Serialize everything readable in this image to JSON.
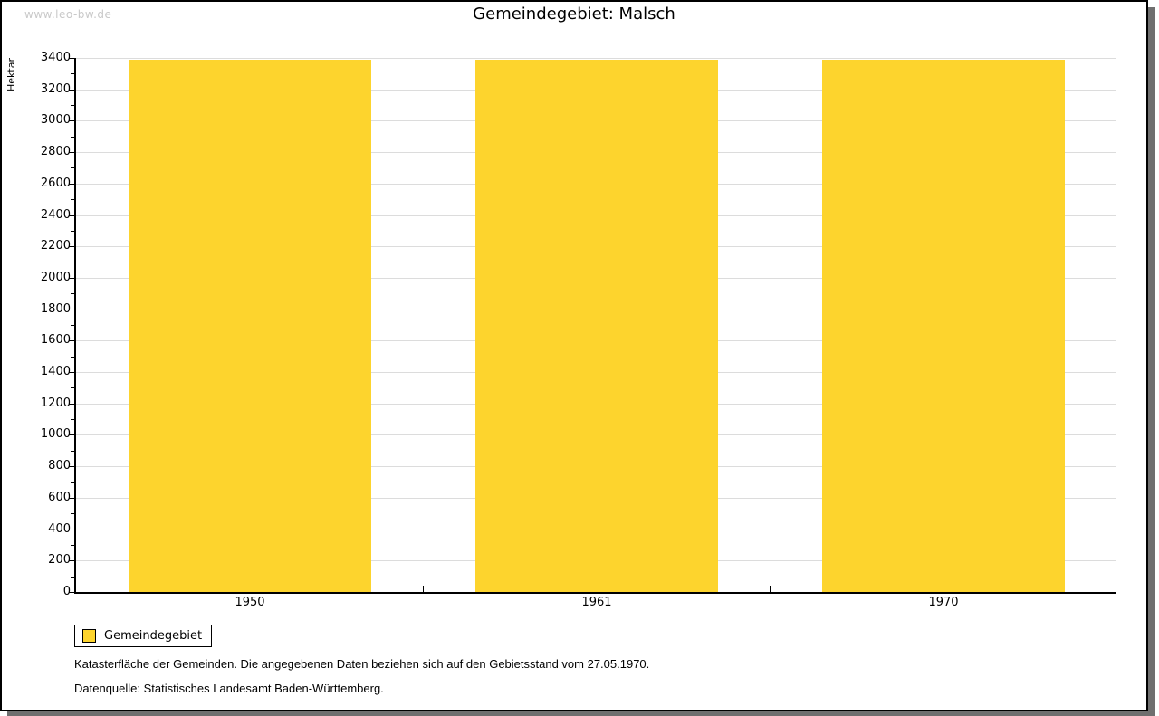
{
  "watermark": "www.leo-bw.de",
  "title": "Gemeindegebiet: Malsch",
  "chart_data": {
    "type": "bar",
    "title": "Gemeindegebiet: Malsch",
    "categories": [
      "1950",
      "1961",
      "1970"
    ],
    "series": [
      {
        "name": "Gemeindegebiet",
        "values": [
          3388,
          3388,
          3388
        ]
      }
    ],
    "xlabel": "",
    "ylabel": "Hektar",
    "ylim": [
      0,
      3400
    ],
    "ytick_major": 200,
    "ytick_minor": 100,
    "grid": "horizontal-major",
    "legend_position": "bottom-left",
    "bar_color": "#fdd42d"
  },
  "legend": {
    "items": [
      {
        "label": "Gemeindegebiet",
        "color": "#fdd42d"
      }
    ]
  },
  "footer": {
    "line1": "Katasterfläche der Gemeinden. Die angegebenen Daten beziehen sich auf den Gebietsstand vom 27.05.1970.",
    "line2": "Datenquelle: Statistisches Landesamt Baden-Württemberg."
  },
  "colors": {
    "bar": "#fdd42d",
    "grid": "#dcdcdc",
    "axis": "#000000",
    "watermark": "#c9c9c9",
    "shadow": "#6f6f6f"
  }
}
